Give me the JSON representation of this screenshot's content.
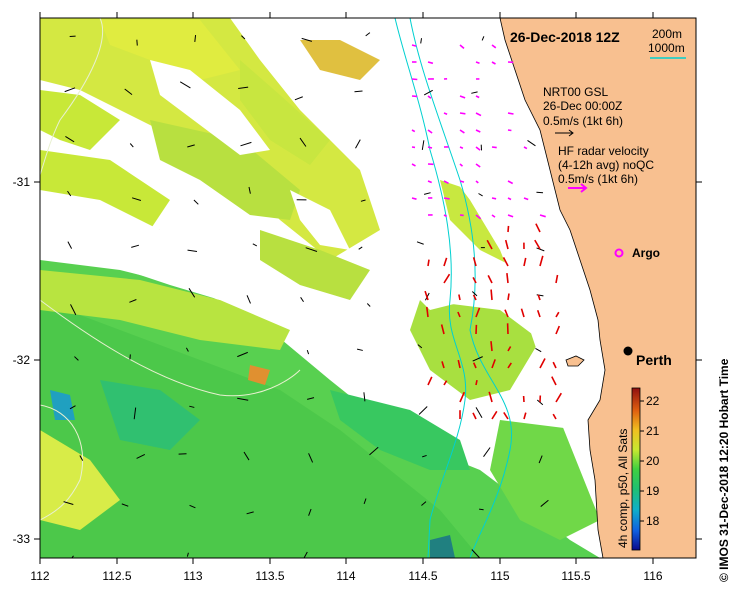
{
  "map": {
    "title": "26-Dec-2018 12Z",
    "side_credit": "© IMOS 31-Dec-2018 12:20 Hobart Time",
    "x_ticks": [
      "112",
      "112.5",
      "113",
      "113.5",
      "114",
      "114.5",
      "115",
      "115.5",
      "116"
    ],
    "y_ticks": [
      "-31",
      "-32",
      "-33"
    ],
    "isobaths": [
      "200m",
      "1000m"
    ],
    "places": [
      {
        "name": "Perth"
      },
      {
        "name": "Argo"
      }
    ],
    "legend": {
      "gsl_title": "NRT00 GSL",
      "gsl_date": "26-Dec 00:00Z",
      "gsl_scale": "0.5m/s (1kt 6h)",
      "hf_title": "HF radar velocity",
      "hf_sub": "(4-12h avg) noQC",
      "hf_scale": "0.5m/s (1kt 6h)"
    },
    "colorbar": {
      "label": "4h comp, p50, All Sats",
      "ticks": [
        "22",
        "21",
        "20",
        "19",
        "18"
      ],
      "range": [
        17.3,
        22.6
      ]
    },
    "colors": {
      "land": "#f8c090",
      "isobath_200": "#00e0e0",
      "isobath_1000": "#00e0e0",
      "argo": "#ff00ff",
      "hf_offshore": "#ff00ff",
      "hf_inshore": "#e00000",
      "gsl_arrows": "#000000"
    }
  },
  "chart_data": {
    "type": "heatmap",
    "title": "26-Dec-2018 12Z",
    "xlabel": "",
    "ylabel": "",
    "xlim": [
      112.0,
      116.3
    ],
    "ylim": [
      -33.1,
      -30.1
    ],
    "colorbar_range": [
      17.3,
      22.6
    ],
    "colorbar_ticks": [
      18,
      19,
      20,
      21,
      22
    ],
    "points": [
      {
        "name": "Perth",
        "x": 115.86,
        "y": -31.95
      },
      {
        "name": "Argo",
        "x": 115.75,
        "y": -31.4
      }
    ]
  }
}
